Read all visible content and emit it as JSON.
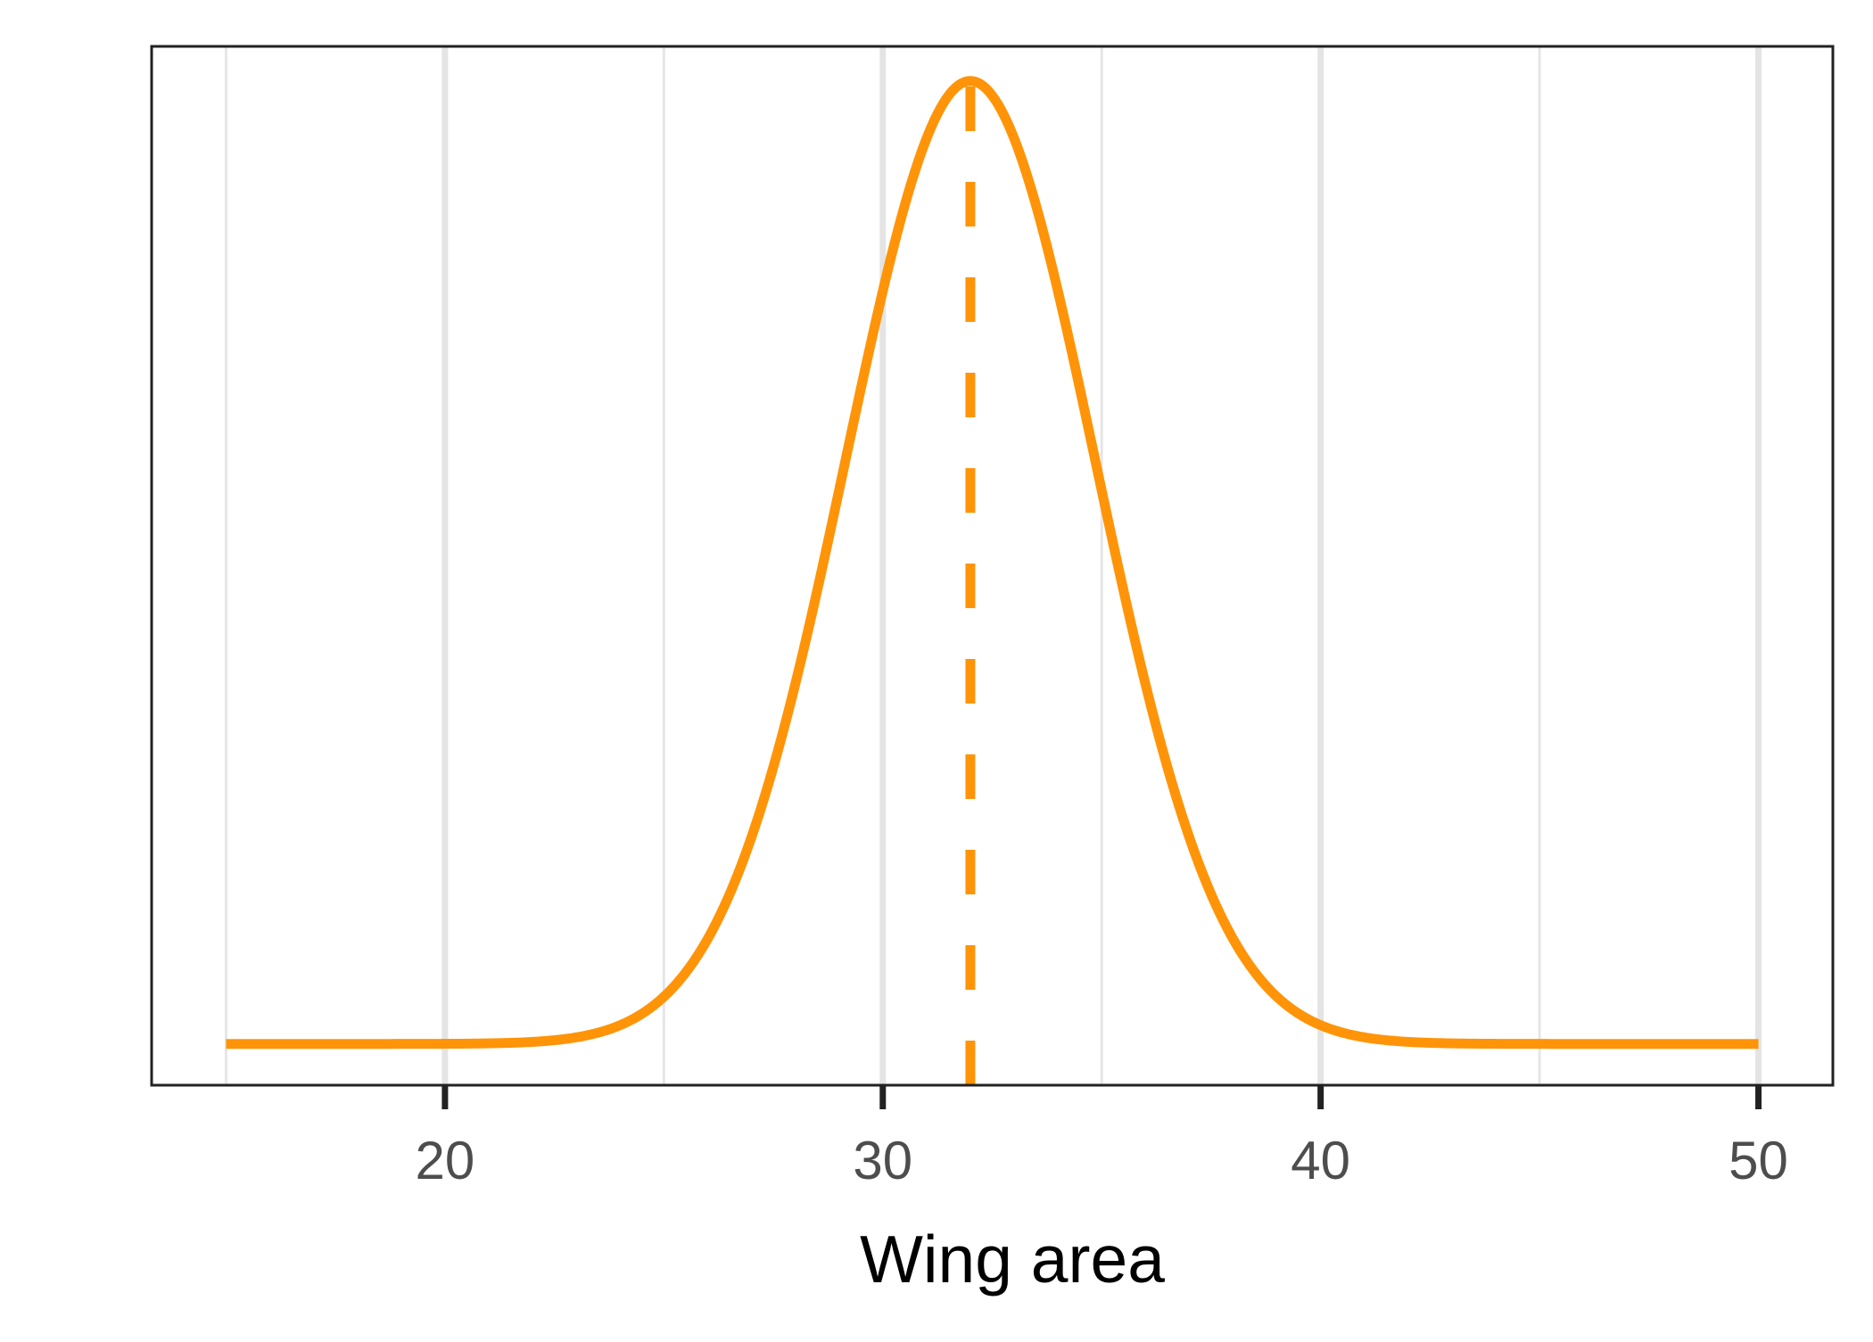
{
  "chart_data": {
    "type": "line",
    "title": "",
    "xlabel": "Wing area",
    "ylabel": "",
    "xlim": [
      13.3,
      51.7
    ],
    "ylim": [
      -0.006,
      0.145
    ],
    "grid": {
      "x_major": true,
      "x_minor": true,
      "y": false
    },
    "xticks": [
      20,
      30,
      40,
      50
    ],
    "xtick_labels": [
      "20",
      "30",
      "40",
      "50"
    ],
    "minor_xticks": [
      15,
      25,
      35,
      45
    ],
    "show_yticks": false,
    "legend": "none",
    "series": [
      {
        "style": "solid",
        "color": "#FF9408",
        "distribution": {
          "family": "normal",
          "mean": 32,
          "sd": 2.85
        },
        "x_range": [
          15,
          50
        ]
      }
    ],
    "reference_lines": [
      {
        "orientation": "vertical",
        "x": 32,
        "style": "dashed",
        "color": "#FF9408"
      }
    ]
  }
}
